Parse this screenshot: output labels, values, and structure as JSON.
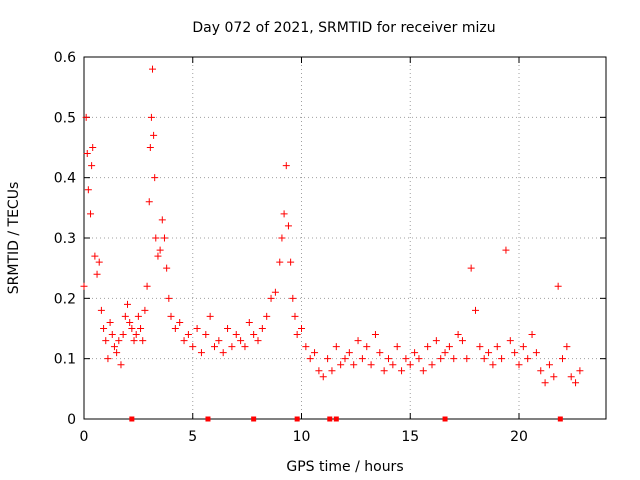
{
  "chart_data": {
    "type": "scatter",
    "title": "Day 072 of 2021, SRMTID for receiver mizu",
    "xlabel": "GPS time / hours",
    "ylabel": "SRMTID / TECUs",
    "xlim": [
      0,
      24
    ],
    "ylim": [
      0,
      0.6
    ],
    "xticks": [
      0,
      5,
      10,
      15,
      20
    ],
    "xtick_labels": [
      "0",
      "5",
      "10",
      "15",
      "20"
    ],
    "yticks": [
      0,
      0.1,
      0.2,
      0.3,
      0.4,
      0.5,
      0.6
    ],
    "ytick_labels": [
      "0",
      "0.1",
      "0.2",
      "0.3",
      "0.4",
      "0.5",
      "0.6"
    ],
    "grid": true,
    "marker": "plus",
    "color": "#ff0000",
    "series": [
      {
        "name": "SRMTID",
        "x": [
          0.0,
          0.1,
          0.15,
          0.2,
          0.3,
          0.35,
          0.4,
          0.5,
          0.6,
          0.7,
          0.8,
          0.9,
          1.0,
          1.1,
          1.2,
          1.3,
          1.4,
          1.5,
          1.6,
          1.7,
          1.8,
          1.9,
          2.0,
          2.1,
          2.2,
          2.3,
          2.4,
          2.5,
          2.6,
          2.7,
          2.8,
          2.9,
          3.0,
          3.05,
          3.1,
          3.15,
          3.2,
          3.25,
          3.3,
          3.4,
          3.5,
          3.6,
          3.7,
          3.8,
          3.9,
          4.0,
          4.2,
          4.4,
          4.6,
          4.8,
          5.0,
          5.2,
          5.4,
          5.6,
          5.8,
          6.0,
          6.2,
          6.4,
          6.6,
          6.8,
          7.0,
          7.2,
          7.4,
          7.6,
          7.8,
          8.0,
          8.2,
          8.4,
          8.6,
          8.8,
          9.0,
          9.1,
          9.2,
          9.3,
          9.4,
          9.5,
          9.6,
          9.7,
          9.8,
          10.0,
          10.2,
          10.4,
          10.6,
          10.8,
          11.0,
          11.2,
          11.4,
          11.6,
          11.8,
          12.0,
          12.2,
          12.4,
          12.6,
          12.8,
          13.0,
          13.2,
          13.4,
          13.6,
          13.8,
          14.0,
          14.2,
          14.4,
          14.6,
          14.8,
          15.0,
          15.2,
          15.4,
          15.6,
          15.8,
          16.0,
          16.2,
          16.4,
          16.6,
          16.8,
          17.0,
          17.2,
          17.4,
          17.6,
          17.8,
          18.0,
          18.2,
          18.4,
          18.6,
          18.8,
          19.0,
          19.2,
          19.4,
          19.6,
          19.8,
          20.0,
          20.2,
          20.4,
          20.6,
          20.8,
          21.0,
          21.2,
          21.4,
          21.6,
          21.8,
          22.0,
          22.2,
          22.4,
          22.6,
          22.8
        ],
        "y": [
          0.22,
          0.5,
          0.44,
          0.38,
          0.34,
          0.42,
          0.45,
          0.27,
          0.24,
          0.26,
          0.18,
          0.15,
          0.13,
          0.1,
          0.16,
          0.14,
          0.12,
          0.11,
          0.13,
          0.09,
          0.14,
          0.17,
          0.19,
          0.16,
          0.15,
          0.13,
          0.14,
          0.17,
          0.15,
          0.13,
          0.18,
          0.22,
          0.36,
          0.45,
          0.5,
          0.58,
          0.47,
          0.4,
          0.3,
          0.27,
          0.28,
          0.33,
          0.3,
          0.25,
          0.2,
          0.17,
          0.15,
          0.16,
          0.13,
          0.14,
          0.12,
          0.15,
          0.11,
          0.14,
          0.17,
          0.12,
          0.13,
          0.11,
          0.15,
          0.12,
          0.14,
          0.13,
          0.12,
          0.16,
          0.14,
          0.13,
          0.15,
          0.17,
          0.2,
          0.21,
          0.26,
          0.3,
          0.34,
          0.42,
          0.32,
          0.26,
          0.2,
          0.17,
          0.14,
          0.15,
          0.12,
          0.1,
          0.11,
          0.08,
          0.07,
          0.1,
          0.08,
          0.12,
          0.09,
          0.1,
          0.11,
          0.09,
          0.13,
          0.1,
          0.12,
          0.09,
          0.14,
          0.11,
          0.08,
          0.1,
          0.09,
          0.12,
          0.08,
          0.1,
          0.09,
          0.11,
          0.1,
          0.08,
          0.12,
          0.09,
          0.13,
          0.1,
          0.11,
          0.12,
          0.1,
          0.14,
          0.13,
          0.1,
          0.25,
          0.18,
          0.12,
          0.1,
          0.11,
          0.09,
          0.12,
          0.1,
          0.28,
          0.13,
          0.11,
          0.09,
          0.12,
          0.1,
          0.14,
          0.11,
          0.08,
          0.06,
          0.09,
          0.07,
          0.22,
          0.1,
          0.12,
          0.07,
          0.06,
          0.08
        ]
      }
    ],
    "gap_markers_x": [
      2.2,
      5.7,
      7.8,
      9.8,
      11.3,
      11.6,
      16.6,
      21.9
    ]
  }
}
